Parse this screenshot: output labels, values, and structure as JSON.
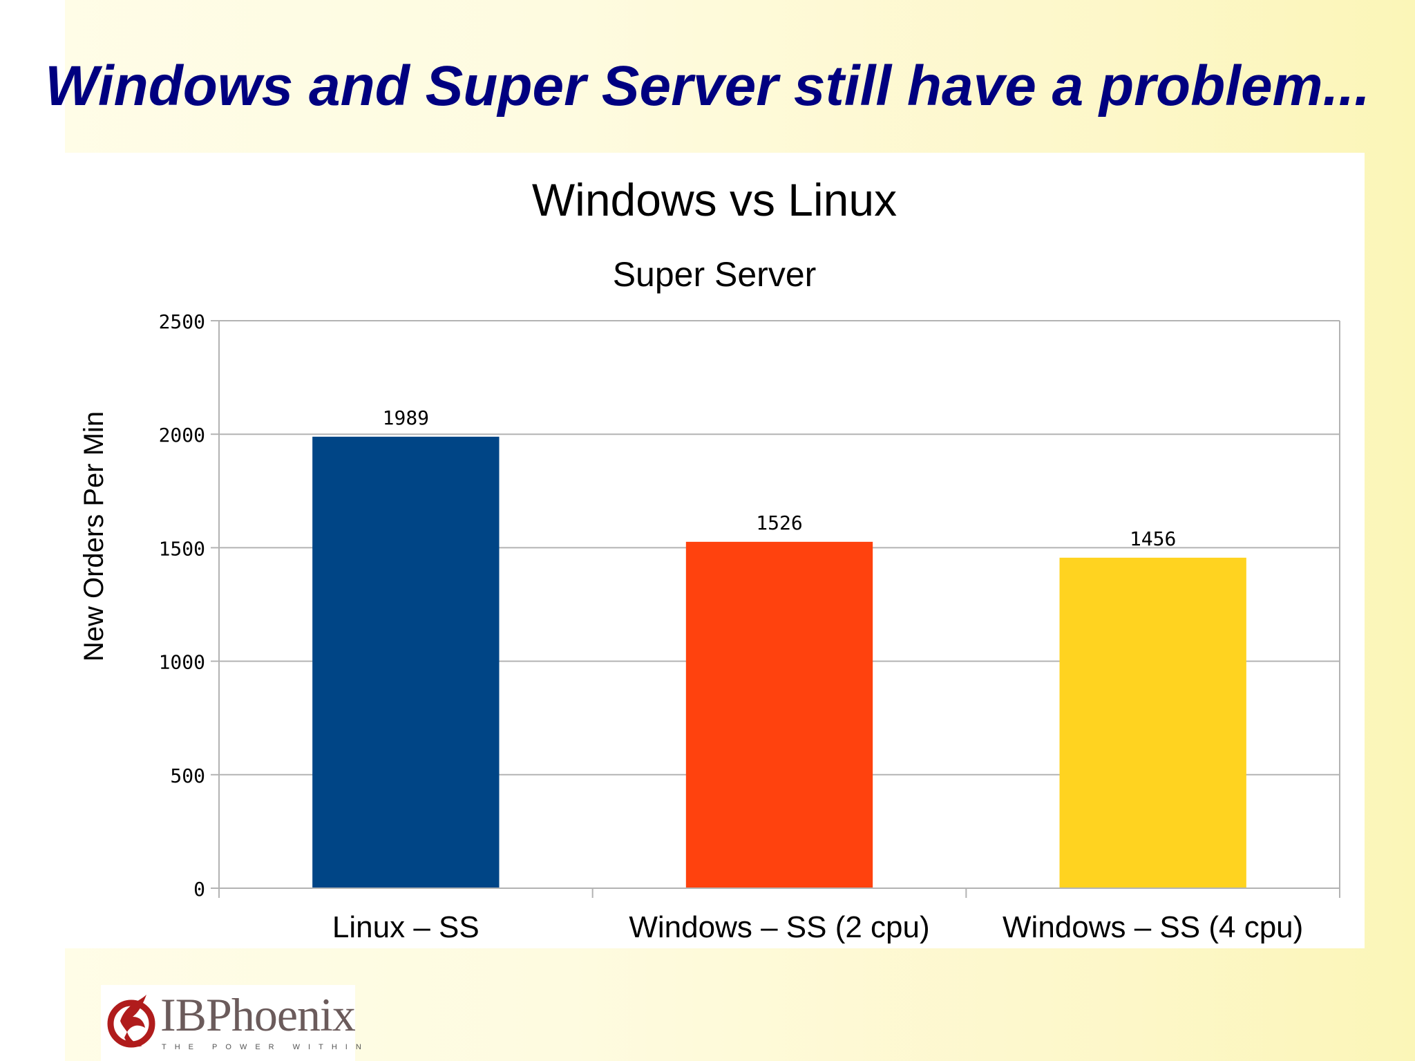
{
  "slide": {
    "title": "Windows and Super Server still have a problem..."
  },
  "chart_data": {
    "type": "bar",
    "title": "Windows vs Linux",
    "subtitle": "Super Server",
    "xlabel": "",
    "ylabel": "New Orders Per Min",
    "categories": [
      "Linux – SS",
      "Windows – SS (2 cpu)",
      "Windows – SS (4 cpu)"
    ],
    "values": [
      1989,
      1526,
      1456
    ],
    "data_labels": [
      "1989",
      "1526",
      "1456"
    ],
    "colors": [
      "#004586",
      "#ff420e",
      "#ffd320"
    ],
    "ylim": [
      0,
      2500
    ],
    "yticks": [
      0,
      500,
      1000,
      1500,
      2000,
      2500
    ],
    "grid": true,
    "legend": "none"
  },
  "logo": {
    "name": "IBPhoenix",
    "tagline": "THE POWER WITHIN",
    "colors": {
      "mark": "#b01c1c",
      "text": "#6b5b5b"
    }
  }
}
